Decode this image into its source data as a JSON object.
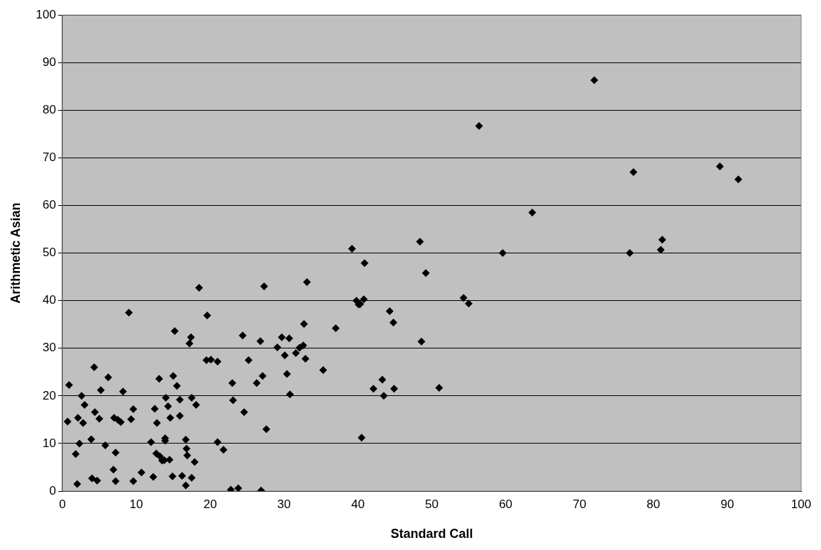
{
  "chart_data": {
    "type": "scatter",
    "xlabel": "Standard Call",
    "ylabel": "Arithmetic Asian",
    "x": [
      0.7,
      0.9,
      1.8,
      2.0,
      2.1,
      2.3,
      2.6,
      2.8,
      3.0,
      3.9,
      4.0,
      4.3,
      4.4,
      4.7,
      5.0,
      5.2,
      5.8,
      6.2,
      6.9,
      7.0,
      7.2,
      7.2,
      7.5,
      7.9,
      8.2,
      9.0,
      9.3,
      9.6,
      9.6,
      10.7,
      12.0,
      12.3,
      12.5,
      12.7,
      12.8,
      13.1,
      13.2,
      13.5,
      13.8,
      13.9,
      13.9,
      14.0,
      14.3,
      14.5,
      14.6,
      14.9,
      15.0,
      15.2,
      15.5,
      15.9,
      15.9,
      16.2,
      16.7,
      16.7,
      16.8,
      16.9,
      17.2,
      17.4,
      17.5,
      17.5,
      17.9,
      18.1,
      18.5,
      19.5,
      19.6,
      20.1,
      21.0,
      21.0,
      21.8,
      22.8,
      23.0,
      23.1,
      23.8,
      24.4,
      24.6,
      25.2,
      26.3,
      26.8,
      26.9,
      27.1,
      27.3,
      27.6,
      29.1,
      29.7,
      30.1,
      30.4,
      30.7,
      30.8,
      31.6,
      32.1,
      32.6,
      32.7,
      32.9,
      33.1,
      35.3,
      37.0,
      39.2,
      39.8,
      40.1,
      40.3,
      40.5,
      40.8,
      40.9,
      42.1,
      43.3,
      43.5,
      44.3,
      44.8,
      44.9,
      48.4,
      48.6,
      49.2,
      51.0,
      54.3,
      55.0,
      56.4,
      59.6,
      63.6,
      72.0,
      76.8,
      77.3,
      81.0,
      81.2,
      89.0,
      91.5
    ],
    "series": [
      {
        "color": "#000000",
        "values": [
          14.6,
          22.3,
          7.8,
          1.5,
          15.4,
          10,
          20,
          14.3,
          18.1,
          10.9,
          2.7,
          26,
          16.6,
          2.2,
          15.2,
          21.2,
          9.6,
          23.9,
          4.5,
          15.4,
          8.1,
          2.1,
          15,
          14.5,
          20.9,
          37.5,
          15.1,
          17.2,
          2.1,
          3.9,
          10.3,
          3,
          17.3,
          7.9,
          14.3,
          23.6,
          7.3,
          6.4,
          6.5,
          11.1,
          10.6,
          19.6,
          17.8,
          6.6,
          15.4,
          3.1,
          24.2,
          33.6,
          22.1,
          19.2,
          15.8,
          3.2,
          1.2,
          10.8,
          8.9,
          7.5,
          31,
          32.3,
          2.8,
          19.6,
          6.1,
          18.1,
          42.7,
          27.5,
          36.9,
          27.6,
          10.3,
          27.2,
          8.7,
          0.3,
          22.7,
          19.1,
          0.6,
          32.7,
          16.6,
          27.5,
          22.7,
          31.5,
          0.1,
          24.2,
          43,
          13,
          30.2,
          32.3,
          28.5,
          24.6,
          32.1,
          20.3,
          29,
          30.1,
          30.6,
          35.1,
          27.8,
          43.9,
          25.4,
          34.2,
          50.9,
          40,
          39.2,
          39.3,
          11.2,
          40.3,
          47.9,
          21.5,
          23.4,
          20,
          37.8,
          35.4,
          21.5,
          52.4,
          31.4,
          45.8,
          21.7,
          40.6,
          39.4,
          76.7,
          50,
          58.5,
          86.3,
          50,
          67,
          50.7,
          52.8,
          68.2,
          65.5
        ]
      }
    ],
    "xlim": [
      0,
      100
    ],
    "xticks": [
      0,
      10,
      20,
      30,
      40,
      50,
      60,
      70,
      80,
      90,
      100
    ],
    "ylim": [
      0,
      100
    ],
    "yticks": [
      0,
      10,
      20,
      30,
      40,
      50,
      60,
      70,
      80,
      90,
      100
    ],
    "grid": "y",
    "marker": "diamond",
    "legend": false
  }
}
